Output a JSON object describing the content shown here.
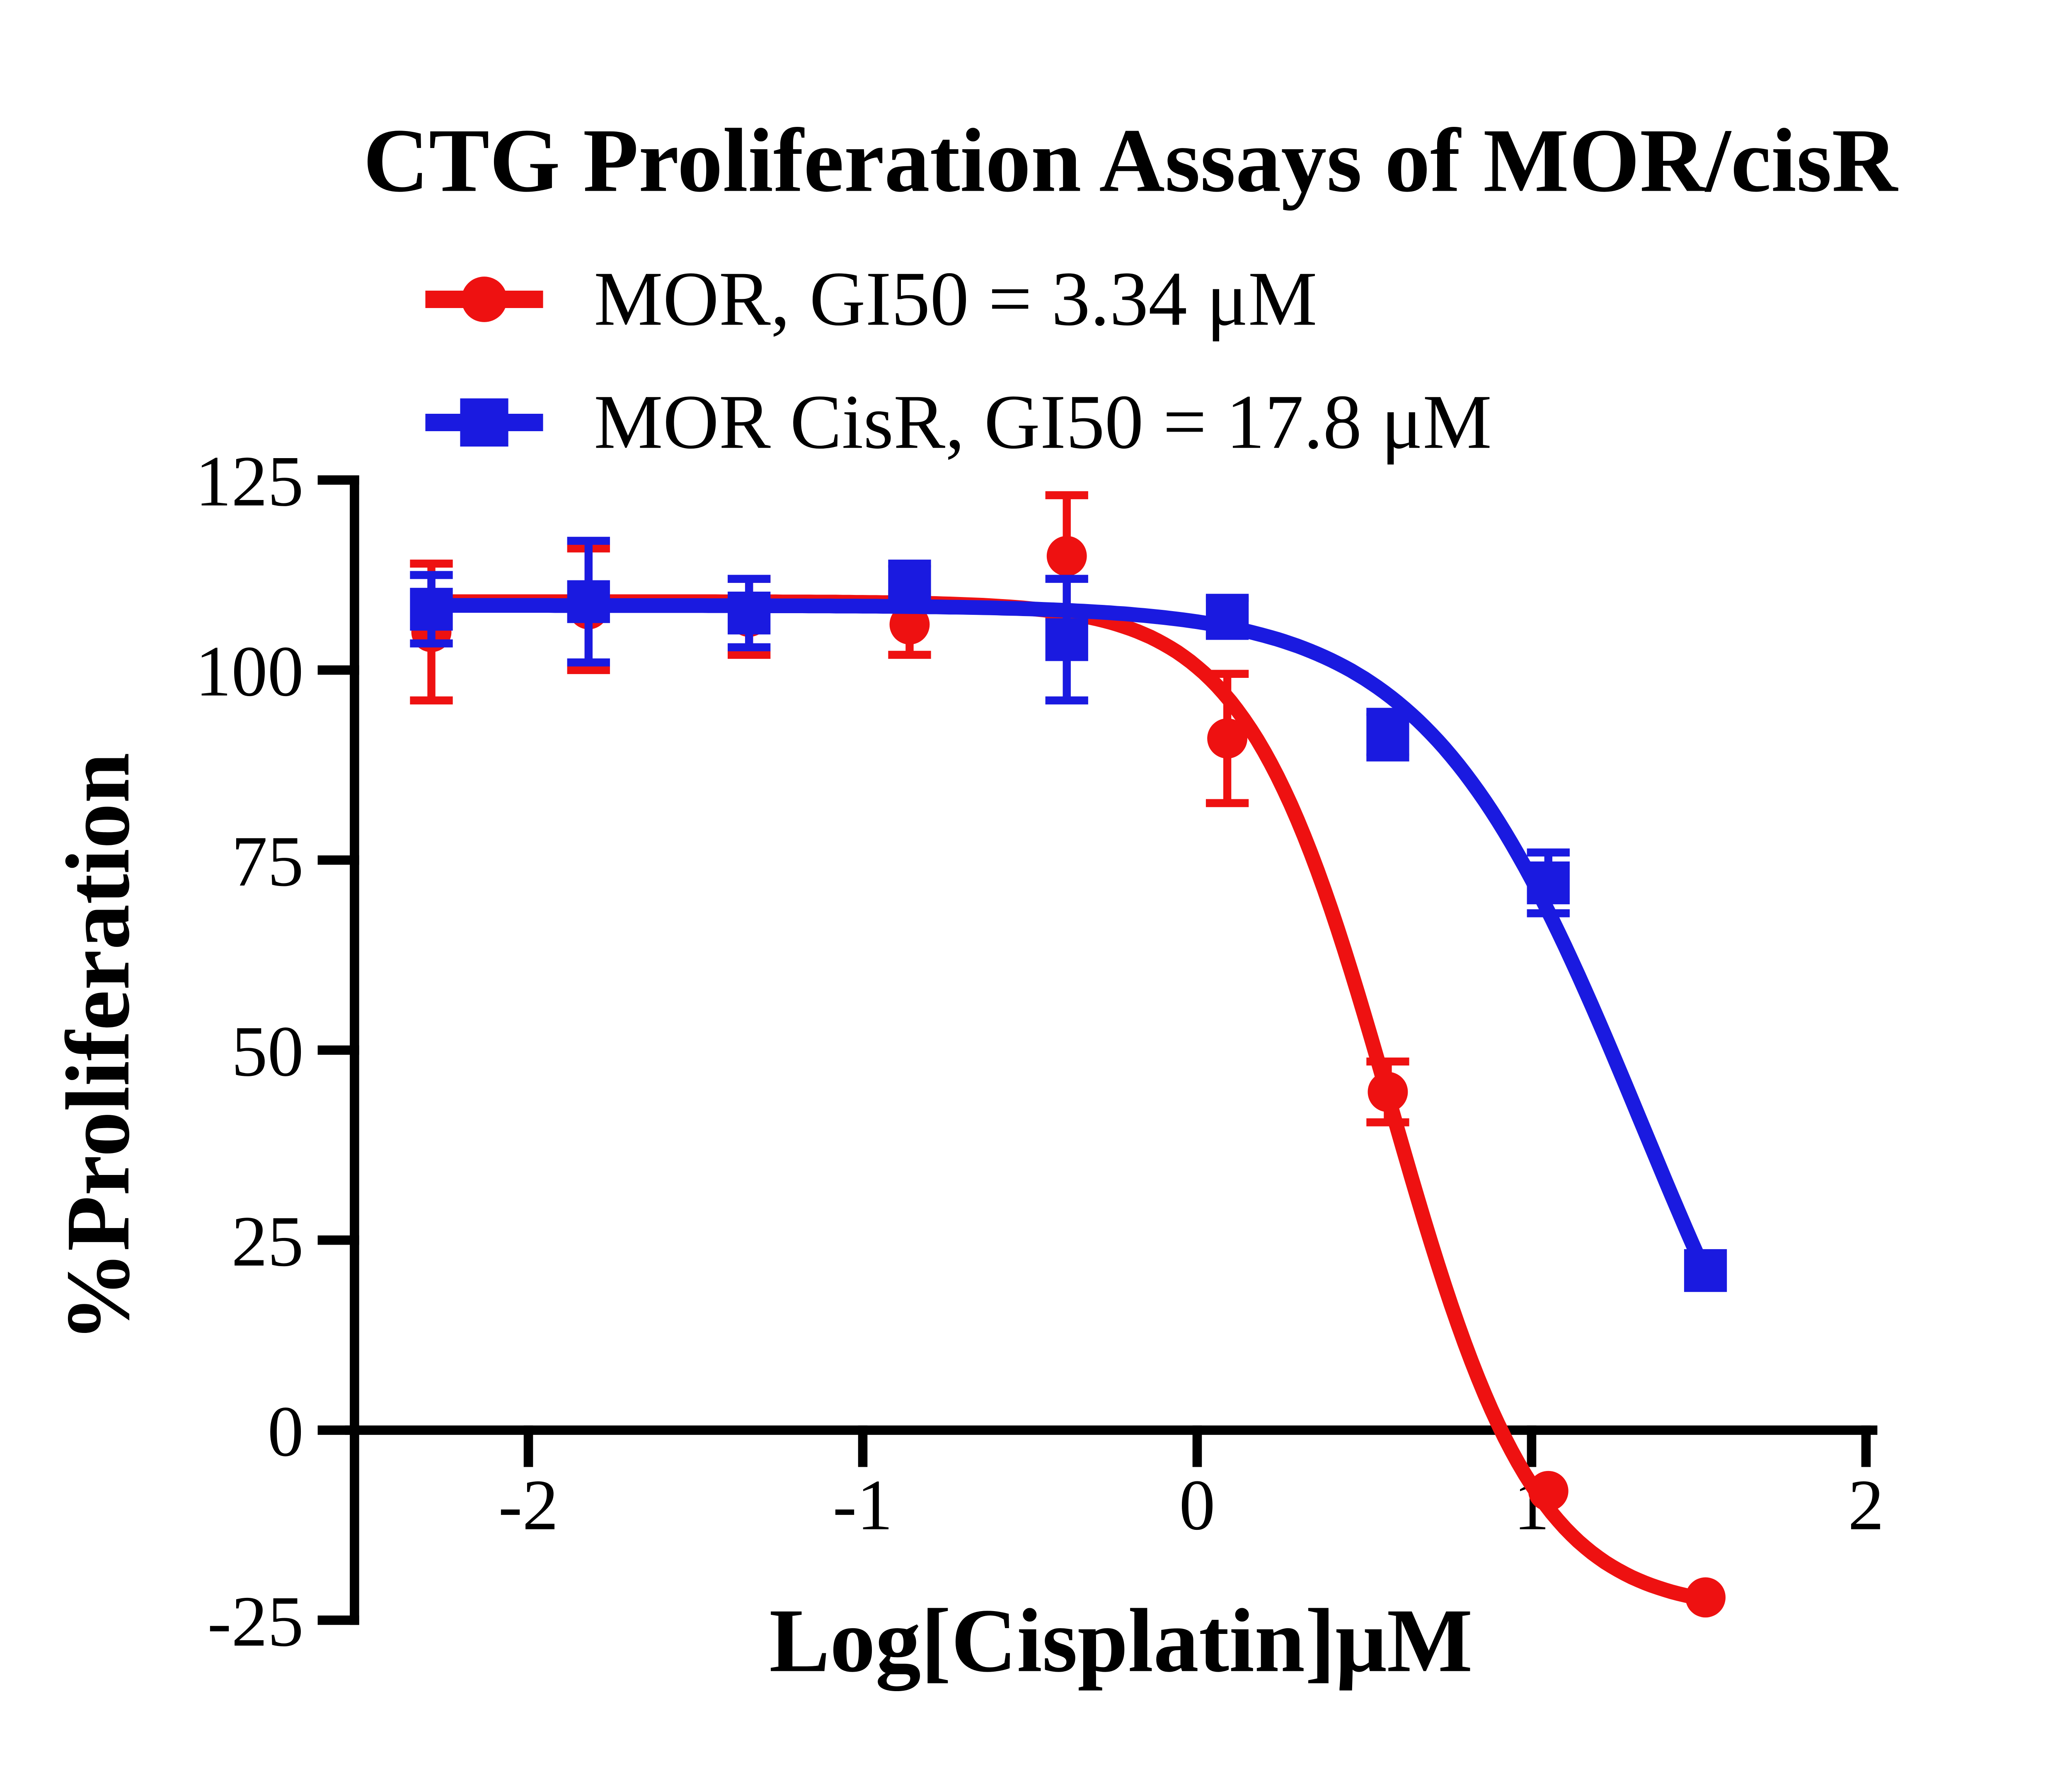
{
  "title": "CTG Proliferation Assays of MOR/cisR",
  "chart_data": {
    "type": "line",
    "title": "CTG Proliferation Assays of MOR/cisR",
    "xlabel": "Log[Cisplatin]μM",
    "ylabel": "%Proliferation",
    "xlim": [
      -2.52,
      2.02
    ],
    "ylim": [
      -25,
      125
    ],
    "x_ticks": [
      -2,
      -1,
      0,
      1,
      2
    ],
    "y_ticks": [
      -25,
      0,
      25,
      50,
      75,
      100,
      125
    ],
    "x_axis_at_y": 0,
    "grid": false,
    "legend_position": "top-left",
    "x": [
      -2.29,
      -1.82,
      -1.34,
      -0.86,
      -0.39,
      0.09,
      0.57,
      1.05,
      1.52
    ],
    "series": [
      {
        "name": "MOR, GI50 = 3.34 μM",
        "marker": "circle",
        "color": "#ee1111",
        "values": [
          105,
          108,
          107,
          106,
          115,
          91,
          44.5,
          -8,
          -22
        ],
        "errors": [
          9,
          8,
          5,
          4,
          8,
          8.5,
          4,
          0,
          0
        ],
        "fit": {
          "top": 109,
          "bottom": -24,
          "logec50": 0.58,
          "hill": 2.0,
          "x_start": -2.3,
          "x_end": 1.52
        }
      },
      {
        "name": "MOR CisR, GI50 = 17.8 μM",
        "marker": "square",
        "color": "#1a1ae0",
        "values": [
          108,
          109,
          107.5,
          111,
          104,
          107,
          91.5,
          72,
          21
        ],
        "errors": [
          4.5,
          8,
          4.5,
          3,
          8,
          2.5,
          3,
          4,
          0
        ],
        "fit": {
          "top": 108.5,
          "bottom": -28,
          "logec50": 1.33,
          "hill": 1.35,
          "x_start": -2.3,
          "x_end": 1.52
        }
      }
    ]
  }
}
